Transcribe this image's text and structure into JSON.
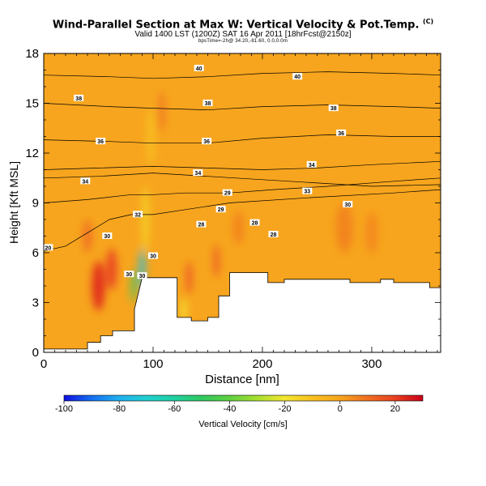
{
  "header": {
    "title": "Wind-Parallel Section at Max W: Vertical Velocity & Pot.Temp.",
    "title_tag": "(C)",
    "subtitle": "Valid 1400 LST (1200Z) SAT 16 Apr 2011 [18hrFcst@2150z]",
    "detail": "bpsTime=-2h@ 34.20,-81.60, 0.0,0.0m"
  },
  "chart_data": {
    "type": "heatmap",
    "xlabel": "Distance [nm]",
    "ylabel": "Height [Kft MSL]",
    "xlim": [
      0,
      363
    ],
    "ylim": [
      0,
      18
    ],
    "x_ticks": [
      0,
      100,
      200,
      300
    ],
    "x_minor_step": 10,
    "y_ticks": [
      0,
      3,
      6,
      9,
      12,
      15,
      18
    ],
    "y_minor_step": 1,
    "field_background_color": "#F7A51E",
    "terrain": {
      "x": [
        0,
        40,
        40,
        52,
        52,
        63,
        63,
        83,
        83,
        90,
        100,
        122,
        122,
        135,
        135,
        150,
        150,
        160,
        160,
        170,
        170,
        178,
        178,
        205,
        205,
        220,
        220,
        280,
        280,
        308,
        308,
        320,
        320,
        353,
        353,
        363
      ],
      "top": [
        0.2,
        0.2,
        0.6,
        0.6,
        1.0,
        1.0,
        1.3,
        1.3,
        2.6,
        4.5,
        4.5,
        4.5,
        2.1,
        2.1,
        1.9,
        1.9,
        2.1,
        2.1,
        3.4,
        3.4,
        4.8,
        4.8,
        4.8,
        4.8,
        4.2,
        4.2,
        4.4,
        4.4,
        4.2,
        4.2,
        4.4,
        4.4,
        4.2,
        4.2,
        3.9,
        3.9
      ]
    },
    "isentropes": [
      {
        "label": "20",
        "x": [
          0,
          20,
          40,
          60,
          80,
          100,
          130,
          170,
          240,
          320,
          363
        ],
        "y": [
          6.1,
          6.4,
          7.2,
          8.0,
          8.3,
          8.3,
          8.6,
          9.0,
          9.3,
          9.6,
          9.8
        ]
      },
      {
        "label": "29",
        "x": [
          0,
          40,
          80,
          100,
          130,
          170,
          210,
          260,
          320,
          363
        ],
        "y": [
          9.0,
          9.2,
          9.5,
          9.5,
          9.6,
          9.6,
          9.8,
          10.0,
          10.3,
          10.5
        ]
      },
      {
        "label": "32",
        "x": [
          0,
          50,
          100,
          150,
          200,
          250,
          300,
          363
        ],
        "y": [
          10.5,
          10.6,
          10.8,
          10.6,
          10.4,
          10.2,
          10.0,
          10.1
        ]
      },
      {
        "label": "34",
        "x": [
          0,
          50,
          100,
          150,
          200,
          250,
          300,
          363
        ],
        "y": [
          11.0,
          11.1,
          11.2,
          11.1,
          11.0,
          11.1,
          11.3,
          11.5
        ]
      },
      {
        "label": "36",
        "x": [
          0,
          60,
          100,
          150,
          200,
          260,
          320,
          363
        ],
        "y": [
          12.8,
          12.7,
          12.6,
          12.6,
          12.9,
          13.1,
          13.0,
          13.0
        ]
      },
      {
        "label": "38",
        "x": [
          0,
          60,
          100,
          150,
          200,
          260,
          320,
          363
        ],
        "y": [
          15.0,
          14.8,
          14.7,
          14.6,
          14.8,
          14.9,
          14.8,
          14.7
        ]
      },
      {
        "label": "40",
        "x": [
          0,
          60,
          100,
          150,
          200,
          260,
          320,
          363
        ],
        "y": [
          16.7,
          16.6,
          16.5,
          16.6,
          16.8,
          16.9,
          16.8,
          16.7
        ]
      }
    ],
    "contour_labels": [
      {
        "text": "20",
        "x": 4,
        "y": 6.3
      },
      {
        "text": "30",
        "x": 58,
        "y": 7.0
      },
      {
        "text": "30",
        "x": 78,
        "y": 4.7
      },
      {
        "text": "32",
        "x": 86,
        "y": 8.3
      },
      {
        "text": "30",
        "x": 90,
        "y": 4.6
      },
      {
        "text": "30",
        "x": 100,
        "y": 5.8
      },
      {
        "text": "28",
        "x": 144,
        "y": 7.7
      },
      {
        "text": "29",
        "x": 162,
        "y": 8.6
      },
      {
        "text": "29",
        "x": 168,
        "y": 9.6
      },
      {
        "text": "28",
        "x": 193,
        "y": 7.8
      },
      {
        "text": "28",
        "x": 210,
        "y": 7.1
      },
      {
        "text": "30",
        "x": 278,
        "y": 8.9
      },
      {
        "text": "33",
        "x": 241,
        "y": 9.7
      },
      {
        "text": "34",
        "x": 38,
        "y": 10.3
      },
      {
        "text": "34",
        "x": 141,
        "y": 10.8
      },
      {
        "text": "34",
        "x": 245,
        "y": 11.3
      },
      {
        "text": "36",
        "x": 52,
        "y": 12.7
      },
      {
        "text": "36",
        "x": 149,
        "y": 12.7
      },
      {
        "text": "36",
        "x": 272,
        "y": 13.2
      },
      {
        "text": "38",
        "x": 32,
        "y": 15.3
      },
      {
        "text": "38",
        "x": 150,
        "y": 15.0
      },
      {
        "text": "38",
        "x": 265,
        "y": 14.7
      },
      {
        "text": "40",
        "x": 142,
        "y": 17.1
      },
      {
        "text": "40",
        "x": 232,
        "y": 16.6
      }
    ],
    "velocity_features": [
      {
        "x": 50,
        "y": 4.0,
        "w": 12,
        "h": 3.0,
        "value": 22
      },
      {
        "x": 62,
        "y": 5.0,
        "w": 10,
        "h": 2.5,
        "value": 18
      },
      {
        "x": 40,
        "y": 7.0,
        "w": 8,
        "h": 2.0,
        "value": 10
      },
      {
        "x": 82,
        "y": 4.0,
        "w": 4,
        "h": 2.0,
        "value": -50
      },
      {
        "x": 90,
        "y": 5.0,
        "w": 5,
        "h": 2.5,
        "value": -75
      },
      {
        "x": 93,
        "y": 8.0,
        "w": 6,
        "h": 4.0,
        "value": -15
      },
      {
        "x": 98,
        "y": 13.0,
        "w": 7,
        "h": 3.5,
        "value": -10
      },
      {
        "x": 108,
        "y": 14.5,
        "w": 6,
        "h": 2.5,
        "value": 8
      },
      {
        "x": 133,
        "y": 4.5,
        "w": 5,
        "h": 2.0,
        "value": 16
      },
      {
        "x": 128,
        "y": 2.5,
        "w": 5,
        "h": 1.5,
        "value": -20
      },
      {
        "x": 158,
        "y": 5.5,
        "w": 6,
        "h": 2.0,
        "value": 12
      },
      {
        "x": 178,
        "y": 7.5,
        "w": 10,
        "h": 2.0,
        "value": 6
      },
      {
        "x": 275,
        "y": 7.5,
        "w": 16,
        "h": 3.0,
        "value": 6
      },
      {
        "x": 300,
        "y": 7.2,
        "w": 12,
        "h": 2.5,
        "value": 5
      }
    ],
    "colorbar": {
      "label": "Vertical Velocity [cm/s]",
      "range": [
        -100,
        30
      ],
      "ticks": [
        -100,
        -80,
        -60,
        -40,
        -20,
        0,
        20
      ],
      "stops": [
        {
          "v": -100,
          "color": "#1010E0"
        },
        {
          "v": -90,
          "color": "#1470F0"
        },
        {
          "v": -80,
          "color": "#20B0F0"
        },
        {
          "v": -70,
          "color": "#20D0D0"
        },
        {
          "v": -60,
          "color": "#20D0A0"
        },
        {
          "v": -50,
          "color": "#30C860"
        },
        {
          "v": -40,
          "color": "#60D040"
        },
        {
          "v": -30,
          "color": "#A8E030"
        },
        {
          "v": -20,
          "color": "#F2E630"
        },
        {
          "v": -10,
          "color": "#F8C020"
        },
        {
          "v": 0,
          "color": "#F7A51E"
        },
        {
          "v": 10,
          "color": "#F07020"
        },
        {
          "v": 20,
          "color": "#E84020"
        },
        {
          "v": 30,
          "color": "#C80018"
        }
      ]
    }
  }
}
